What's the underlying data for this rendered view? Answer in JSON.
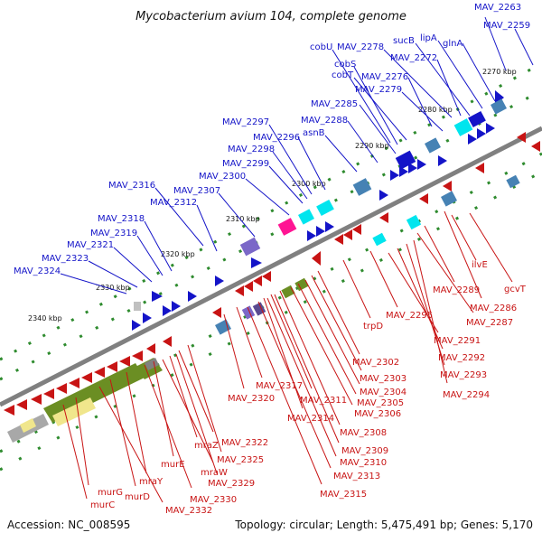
{
  "title": "Mycobacterium avium 104, complete genome",
  "footer": {
    "accession": "Accession: NC_008595",
    "topology": "Topology: circular; Length: 5,475,491 bp; Genes: 5,170"
  },
  "colors": {
    "forward": "#1414c8",
    "reverse": "#c81414",
    "backbone": "#808080",
    "tick": "#2e8b2e"
  },
  "ticks": [
    "2270 kbp",
    "2280 kbp",
    "2290 kbp",
    "2300 kbp",
    "2310 kbp",
    "2320 kbp",
    "2330 kbp",
    "2340 kbp"
  ],
  "upper_labels": [
    "MAV_2263",
    "MAV_2259",
    "cobU",
    "MAV_2278",
    "sucB",
    "lipA",
    "glnA",
    "cobS",
    "MAV_2272",
    "cobT",
    "MAV_2276",
    "MAV_2279",
    "MAV_2285",
    "MAV_2288",
    "asnB",
    "MAV_2297",
    "MAV_2296",
    "MAV_2298",
    "MAV_2299",
    "MAV_2300",
    "MAV_2316",
    "MAV_2307",
    "MAV_2312",
    "MAV_2318",
    "MAV_2319",
    "MAV_2321",
    "MAV_2323",
    "MAV_2324"
  ],
  "lower_labels": [
    "ilvE",
    "gcvT",
    "MAV_2289",
    "MAV_2286",
    "MAV_2287",
    "MAV_2295",
    "trpD",
    "MAV_2291",
    "MAV_2292",
    "MAV_2293",
    "MAV_2294",
    "MAV_2302",
    "MAV_2303",
    "MAV_2304",
    "MAV_2305",
    "MAV_2306",
    "MAV_2317",
    "MAV_2311",
    "MAV_2320",
    "MAV_2314",
    "MAV_2308",
    "MAV_2309",
    "MAV_2310",
    "MAV_2313",
    "MAV_2315",
    "MAV_2322",
    "mraZ",
    "MAV_2325",
    "murE",
    "mraW",
    "MAV_2329",
    "mraY",
    "MAV_2330",
    "murG",
    "murD",
    "murC",
    "MAV_2332"
  ]
}
